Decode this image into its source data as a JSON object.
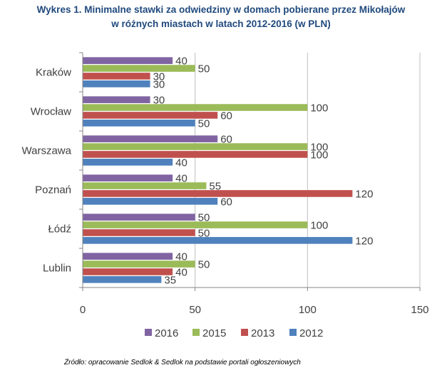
{
  "title": {
    "line1": "Wykres 1. Minimalne stawki za odwiedziny w domach pobierane przez Mikołajów",
    "line2": "w różnych miastach w latach 2012-2016 (w PLN)"
  },
  "chart_data": {
    "type": "bar",
    "orientation": "horizontal",
    "categories": [
      "Kraków",
      "Wrocław",
      "Warszawa",
      "Poznań",
      "Łódź",
      "Lublin"
    ],
    "series": [
      {
        "name": "2016",
        "color": "#8064a2",
        "values": [
          40,
          30,
          60,
          40,
          50,
          40
        ]
      },
      {
        "name": "2015",
        "color": "#9bbb59",
        "values": [
          50,
          100,
          100,
          55,
          100,
          50
        ]
      },
      {
        "name": "2013",
        "color": "#c0504d",
        "values": [
          30,
          60,
          100,
          120,
          50,
          40
        ]
      },
      {
        "name": "2012",
        "color": "#4f81bd",
        "values": [
          30,
          50,
          40,
          60,
          120,
          35
        ]
      }
    ],
    "xlim": [
      0,
      150
    ],
    "xticks": [
      0,
      50,
      100,
      150
    ],
    "gridlines": true,
    "legend_position": "bottom",
    "data_labels": true
  },
  "source": "Źródło: opracowanie Sedlok & Sedlok na podstawie portali ogłoszeniowych"
}
